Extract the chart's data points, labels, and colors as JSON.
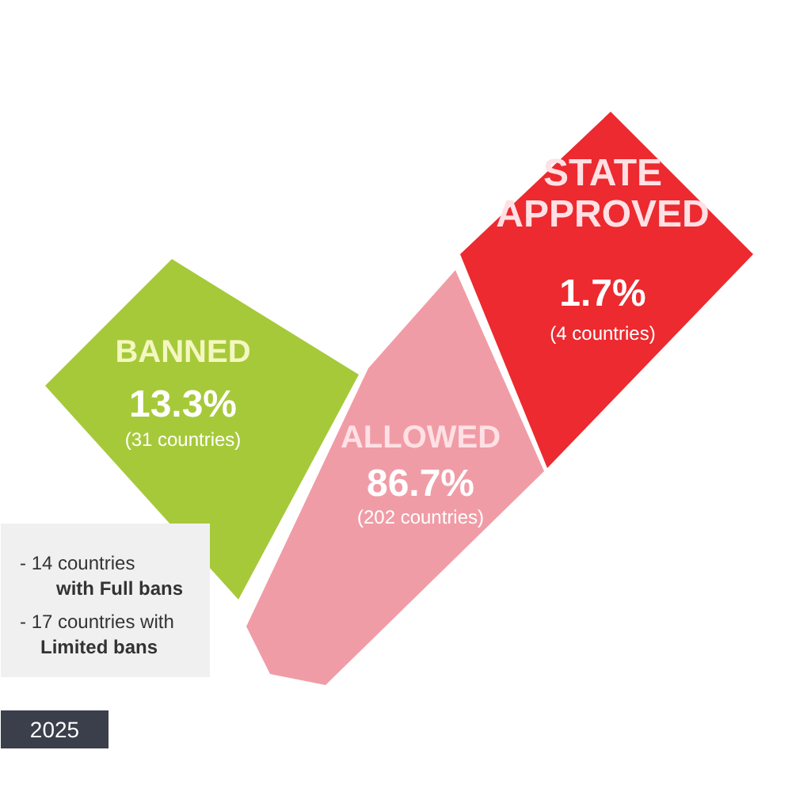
{
  "chart_data": {
    "type": "other",
    "categories": [
      "BANNED",
      "ALLOWED",
      "STATE APPROVED"
    ],
    "values": [
      13.3,
      86.7,
      1.7
    ],
    "value_labels": [
      "13.3%",
      "86.7%",
      "1.7%"
    ],
    "colors": [
      "#a6c93a",
      "#f09ca6",
      "#ec2a2f"
    ],
    "annotations": [
      {
        "text": "(31 countries)",
        "x": "BANNED"
      },
      {
        "text": "(202 countries)",
        "x": "ALLOWED"
      },
      {
        "text": "(4 countries)",
        "x": "STATE APPROVED"
      },
      "- 14 countries",
      "with Full bans",
      "- 17 countries with",
      "Limited bans",
      "2025"
    ]
  }
}
